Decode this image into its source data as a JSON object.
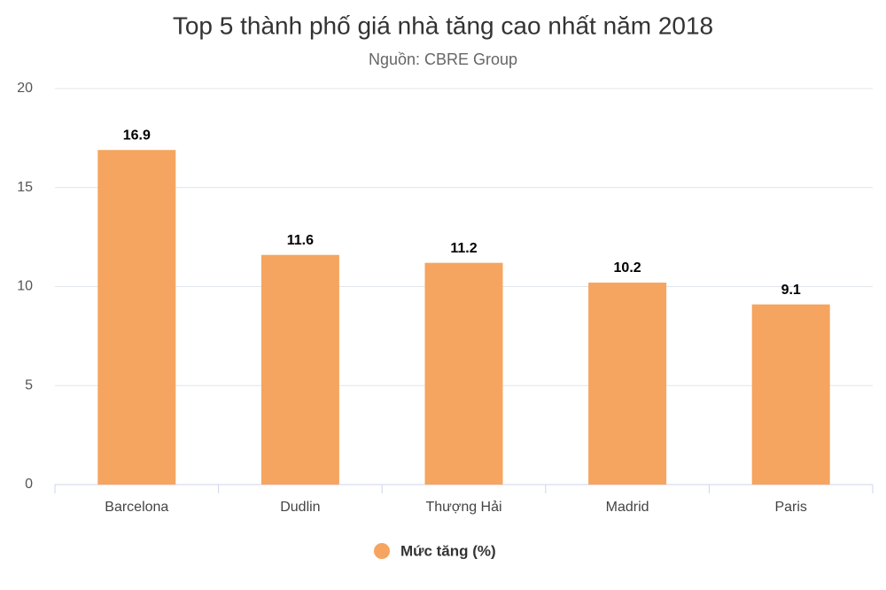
{
  "chart_data": {
    "type": "bar",
    "title": "Top 5 thành phố giá nhà tăng cao nhất năm 2018",
    "subtitle": "Nguồn: CBRE Group",
    "categories": [
      "Barcelona",
      "Dudlin",
      "Thượng Hải",
      "Madrid",
      "Paris"
    ],
    "series": [
      {
        "name": "Mức tăng (%)",
        "color": "#f5a55f",
        "values": [
          16.9,
          11.6,
          11.2,
          10.2,
          9.1
        ]
      }
    ],
    "ylim": [
      0,
      20
    ],
    "yticks": [
      0,
      5,
      10,
      15,
      20
    ],
    "grid": true,
    "legend": "bottom"
  }
}
